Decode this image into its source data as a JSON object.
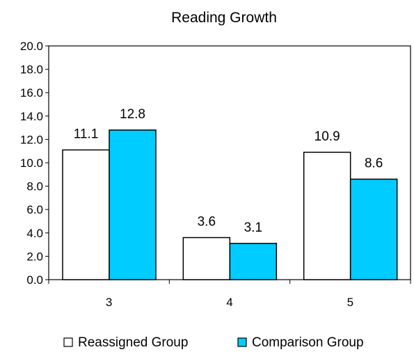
{
  "chart_data": {
    "type": "bar",
    "title": "Reading Growth",
    "xlabel": "",
    "ylabel": "",
    "categories": [
      "3",
      "4",
      "5"
    ],
    "series": [
      {
        "name": "Reassigned Group",
        "values": [
          11.1,
          3.6,
          10.9
        ],
        "color": "#ffffff"
      },
      {
        "name": "Comparison Group",
        "values": [
          12.8,
          3.1,
          8.6
        ],
        "color": "#00ccff"
      }
    ],
    "ylim": [
      0,
      20
    ],
    "yticks": [
      "0.0",
      "2.0",
      "4.0",
      "6.0",
      "8.0",
      "10.0",
      "12.0",
      "14.0",
      "16.0",
      "18.0",
      "20.0"
    ],
    "data_labels": [
      [
        "11.1",
        "3.6",
        "10.9"
      ],
      [
        "12.8",
        "3.1",
        "8.6"
      ]
    ],
    "grid": false,
    "legend_position": "bottom",
    "bar_outline_color": "#000000"
  }
}
